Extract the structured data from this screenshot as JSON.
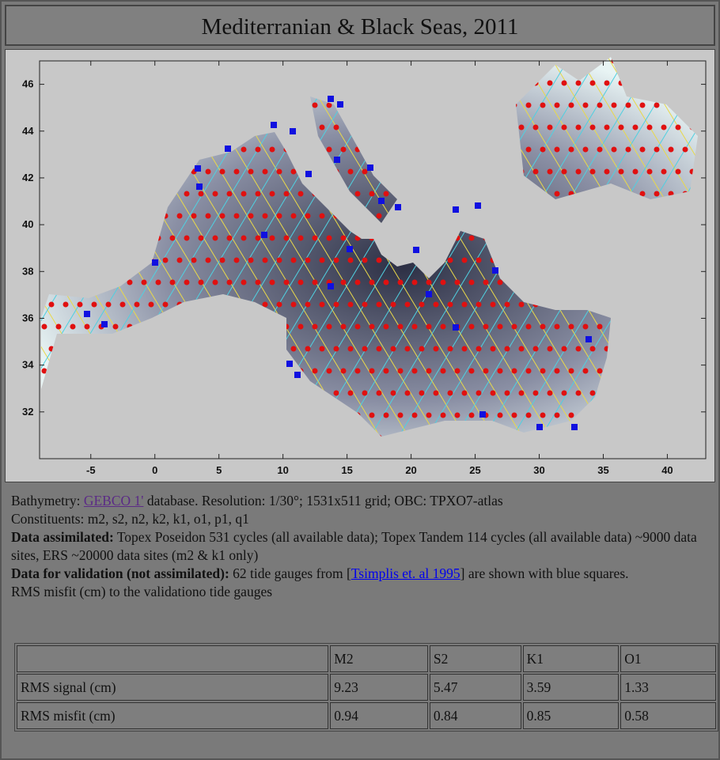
{
  "header": {
    "title": "Mediterranian & Black Seas, 2011"
  },
  "map": {
    "xlim": [
      -9,
      43
    ],
    "ylim": [
      30,
      47
    ],
    "xticks": [
      -5,
      0,
      5,
      10,
      15,
      20,
      25,
      30,
      35,
      40
    ],
    "yticks": [
      32,
      34,
      36,
      38,
      40,
      42,
      44,
      46
    ]
  },
  "description": {
    "line0": {
      "prefix": "Bathymetry: ",
      "link": "GEBCO 1'",
      "suffix": " database. Resolution: 1/30°; 1531x511 grid; OBC: TPXO7-atlas"
    },
    "line1": "Constituents: m2, s2, n2, k2, k1, o1, p1, q1",
    "line2": {
      "bold": "Data assimilated:",
      "text": " Topex Poseidon 531 cycles (all available data); Topex Tandem 114 cycles (all available data) ~9000 data sites, ERS ~20000 data sites (m2 & k1 only)"
    },
    "line3": {
      "bold": "Data for validation (not assimilated):",
      "prefix": " 62 tide gauges from [",
      "link": "Tsimplis et. al 1995",
      "suffix": "] are shown with blue squares."
    },
    "line4": "RMS misfit (cm) to the validationo tide gauges"
  },
  "table": {
    "header": [
      "M2",
      "S2",
      "K1",
      "O1"
    ],
    "rows": [
      {
        "label": "RMS signal (cm)",
        "values": [
          9.23,
          5.47,
          3.59,
          1.33
        ]
      },
      {
        "label": "RMS misfit (cm)",
        "values": [
          0.94,
          0.84,
          0.85,
          0.58
        ]
      }
    ]
  }
}
